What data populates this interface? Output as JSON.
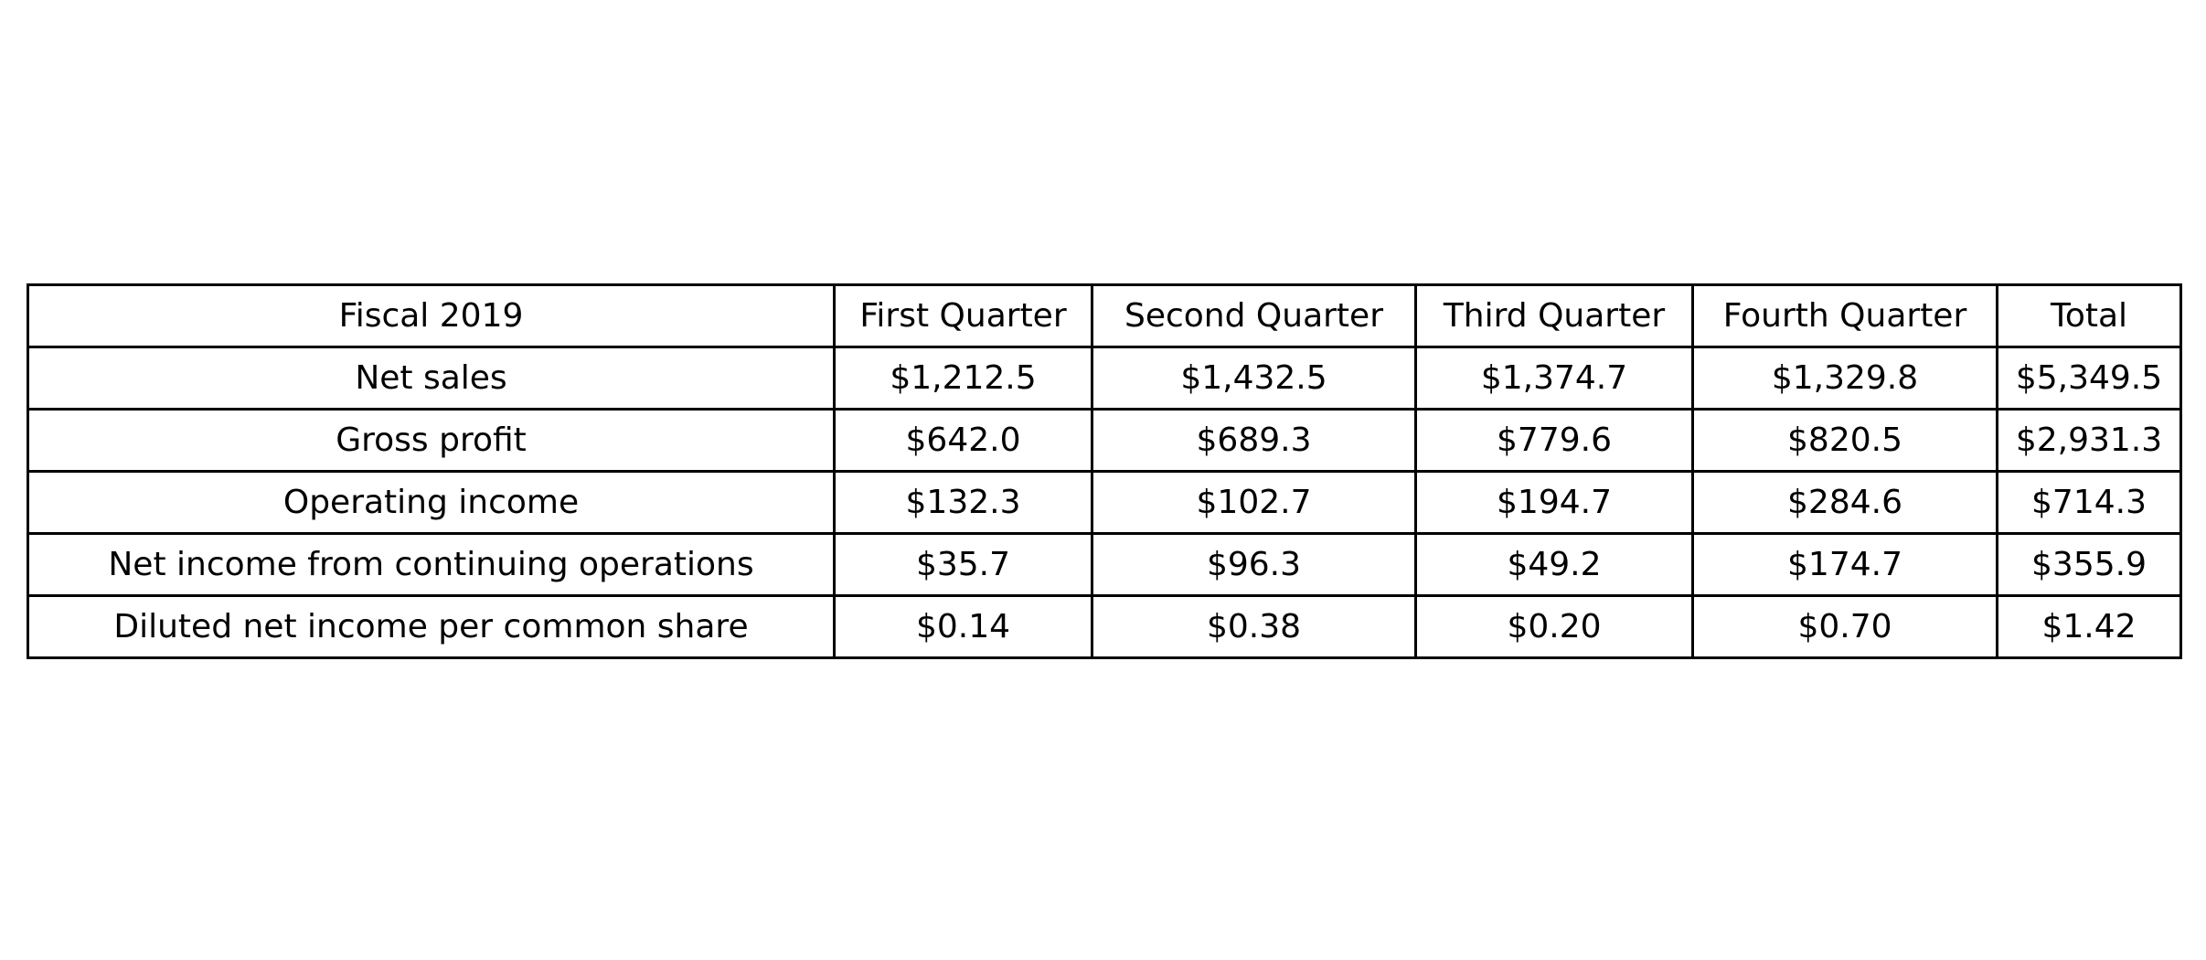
{
  "chart_data": {
    "type": "table",
    "columns": [
      "Fiscal 2019",
      "First Quarter",
      "Second Quarter",
      "Third Quarter",
      "Fourth Quarter",
      "Total"
    ],
    "rows": [
      [
        "Net sales",
        "$1,212.5",
        "$1,432.5",
        "$1,374.7",
        "$1,329.8",
        "$5,349.5"
      ],
      [
        "Gross profit",
        "$642.0",
        "$689.3",
        "$779.6",
        "$820.5",
        "$2,931.3"
      ],
      [
        "Operating income",
        "$132.3",
        "$102.7",
        "$194.7",
        "$284.6",
        "$714.3"
      ],
      [
        "Net income from continuing operations",
        "$35.7",
        "$96.3",
        "$49.2",
        "$174.7",
        "$355.9"
      ],
      [
        "Diluted net income per common share",
        "$0.14",
        "$0.38",
        "$0.20",
        "$0.70",
        "$1.42"
      ]
    ]
  }
}
